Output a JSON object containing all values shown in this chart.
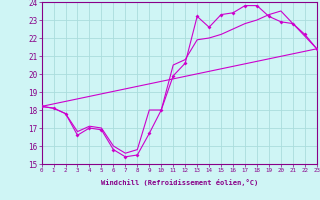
{
  "xlabel": "Windchill (Refroidissement éolien,°C)",
  "bg_color": "#cff5f5",
  "line_color": "#cc00cc",
  "grid_color": "#aadddd",
  "xmin": 0,
  "xmax": 23,
  "ymin": 15,
  "ymax": 24,
  "line1_x": [
    0,
    1,
    2,
    3,
    4,
    5,
    6,
    7,
    8,
    9,
    10,
    11,
    12,
    13,
    14,
    15,
    16,
    17,
    18,
    19,
    20,
    21,
    22,
    23
  ],
  "line1_y": [
    18.2,
    18.1,
    17.8,
    16.6,
    17.0,
    16.9,
    15.8,
    15.4,
    15.5,
    16.7,
    18.0,
    19.9,
    20.6,
    23.2,
    22.6,
    23.3,
    23.4,
    23.8,
    23.8,
    23.2,
    22.9,
    22.8,
    22.2,
    21.4
  ],
  "line2_x": [
    0,
    1,
    2,
    3,
    4,
    5,
    6,
    7,
    8,
    9,
    10,
    11,
    12,
    13,
    14,
    15,
    16,
    17,
    18,
    19,
    20,
    21,
    22,
    23
  ],
  "line2_y": [
    18.2,
    18.1,
    17.8,
    16.8,
    17.1,
    17.0,
    16.0,
    15.6,
    15.8,
    18.0,
    18.0,
    20.5,
    20.8,
    21.9,
    22.0,
    22.2,
    22.5,
    22.8,
    23.0,
    23.3,
    23.5,
    22.8,
    22.1,
    21.4
  ],
  "line3_x": [
    0,
    23
  ],
  "line3_y": [
    18.2,
    21.4
  ],
  "tick_color": "#880088",
  "spine_color": "#880088",
  "xlabel_fontsize": 5.0,
  "ytick_fontsize": 5.5,
  "xtick_fontsize": 4.2
}
